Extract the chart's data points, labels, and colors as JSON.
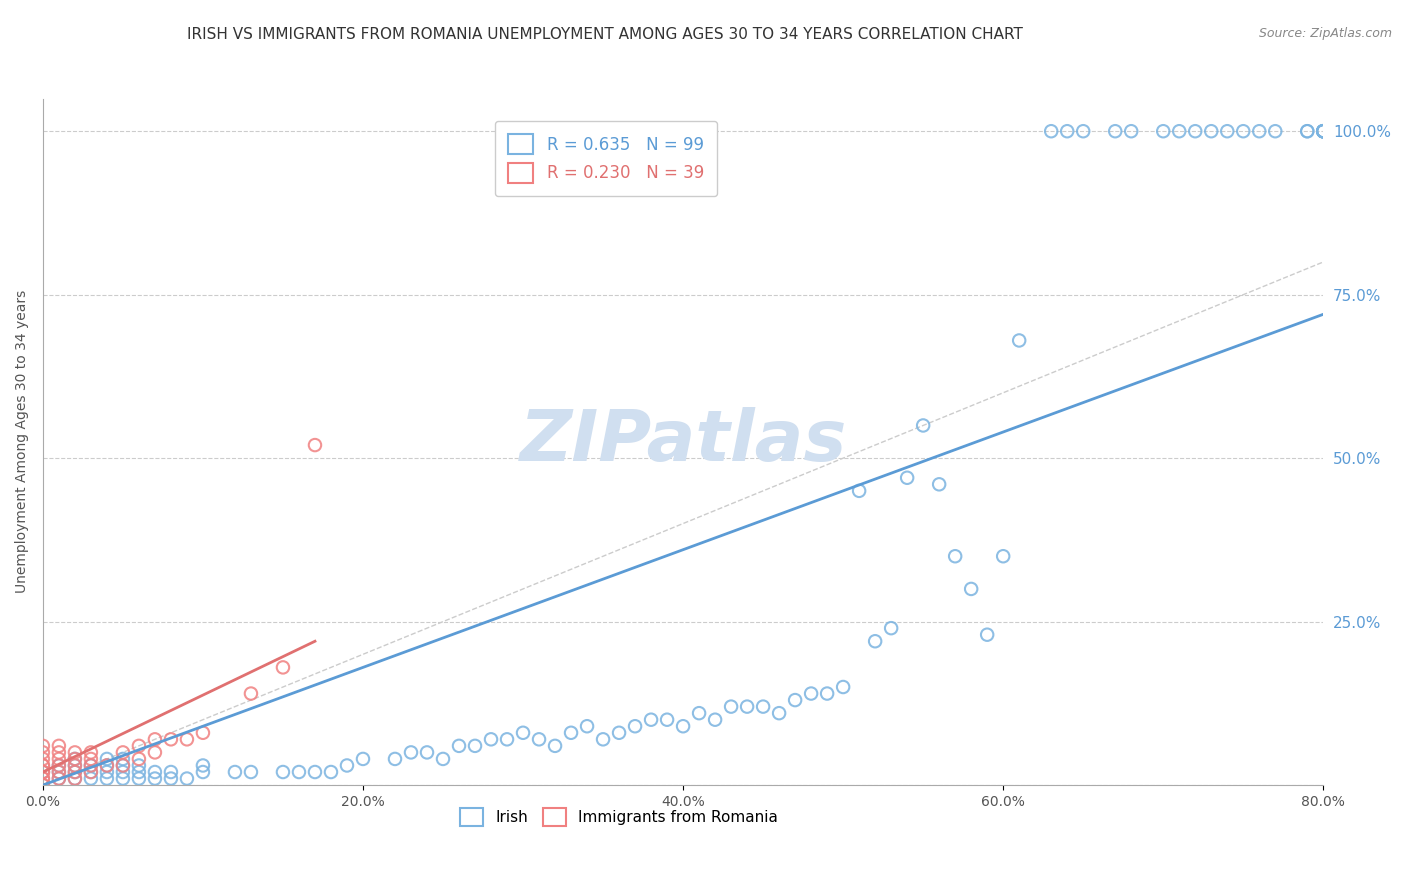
{
  "title": "IRISH VS IMMIGRANTS FROM ROMANIA UNEMPLOYMENT AMONG AGES 30 TO 34 YEARS CORRELATION CHART",
  "source": "Source: ZipAtlas.com",
  "xlabel": "",
  "ylabel": "Unemployment Among Ages 30 to 34 years",
  "xlim": [
    0.0,
    0.8
  ],
  "ylim": [
    0.0,
    1.05
  ],
  "xticks": [
    0.0,
    0.2,
    0.4,
    0.6,
    0.8
  ],
  "xticklabels": [
    "0.0%",
    "20.0%",
    "40.0%",
    "60.0%",
    "80.0%"
  ],
  "yticks_right": [
    0.0,
    0.25,
    0.5,
    0.75,
    1.0
  ],
  "yticklabels_right": [
    "",
    "25.0%",
    "50.0%",
    "75.0%",
    "100.0%"
  ],
  "irish_color": "#7ab3e0",
  "romania_color": "#f08080",
  "irish_R": 0.635,
  "irish_N": 99,
  "romania_R": 0.23,
  "romania_N": 39,
  "background_color": "#ffffff",
  "watermark": "ZIPatlas",
  "watermark_color": "#d0dff0",
  "irish_scatter_x": [
    0.0,
    0.01,
    0.01,
    0.01,
    0.02,
    0.02,
    0.02,
    0.02,
    0.03,
    0.03,
    0.03,
    0.04,
    0.04,
    0.04,
    0.04,
    0.05,
    0.05,
    0.05,
    0.05,
    0.06,
    0.06,
    0.06,
    0.07,
    0.07,
    0.08,
    0.08,
    0.09,
    0.1,
    0.1,
    0.12,
    0.13,
    0.15,
    0.16,
    0.17,
    0.18,
    0.19,
    0.2,
    0.22,
    0.23,
    0.24,
    0.25,
    0.26,
    0.27,
    0.28,
    0.29,
    0.3,
    0.31,
    0.32,
    0.33,
    0.34,
    0.35,
    0.36,
    0.37,
    0.38,
    0.39,
    0.4,
    0.41,
    0.42,
    0.43,
    0.44,
    0.45,
    0.46,
    0.47,
    0.48,
    0.49,
    0.5,
    0.51,
    0.52,
    0.53,
    0.54,
    0.55,
    0.56,
    0.57,
    0.58,
    0.59,
    0.6,
    0.61,
    0.63,
    0.64,
    0.65,
    0.67,
    0.68,
    0.7,
    0.71,
    0.72,
    0.73,
    0.74,
    0.75,
    0.76,
    0.77,
    0.79,
    0.79,
    0.8,
    0.8,
    0.8,
    0.8,
    0.8,
    0.8,
    0.8
  ],
  "irish_scatter_y": [
    0.02,
    0.01,
    0.02,
    0.03,
    0.01,
    0.02,
    0.03,
    0.04,
    0.01,
    0.02,
    0.03,
    0.01,
    0.02,
    0.03,
    0.04,
    0.01,
    0.02,
    0.03,
    0.04,
    0.01,
    0.02,
    0.03,
    0.01,
    0.02,
    0.01,
    0.02,
    0.01,
    0.02,
    0.03,
    0.02,
    0.02,
    0.02,
    0.02,
    0.02,
    0.02,
    0.03,
    0.04,
    0.04,
    0.05,
    0.05,
    0.04,
    0.06,
    0.06,
    0.07,
    0.07,
    0.08,
    0.07,
    0.06,
    0.08,
    0.09,
    0.07,
    0.08,
    0.09,
    0.1,
    0.1,
    0.09,
    0.11,
    0.1,
    0.12,
    0.12,
    0.12,
    0.11,
    0.13,
    0.14,
    0.14,
    0.15,
    0.45,
    0.22,
    0.24,
    0.47,
    0.55,
    0.46,
    0.35,
    0.3,
    0.23,
    0.35,
    0.68,
    1.0,
    1.0,
    1.0,
    1.0,
    1.0,
    1.0,
    1.0,
    1.0,
    1.0,
    1.0,
    1.0,
    1.0,
    1.0,
    1.0,
    1.0,
    1.0,
    1.0,
    1.0,
    1.0,
    1.0,
    1.0,
    1.0
  ],
  "romania_scatter_x": [
    0.0,
    0.0,
    0.0,
    0.0,
    0.0,
    0.0,
    0.0,
    0.0,
    0.0,
    0.0,
    0.0,
    0.01,
    0.01,
    0.01,
    0.01,
    0.01,
    0.01,
    0.02,
    0.02,
    0.02,
    0.02,
    0.02,
    0.03,
    0.03,
    0.03,
    0.03,
    0.04,
    0.05,
    0.05,
    0.06,
    0.06,
    0.07,
    0.07,
    0.08,
    0.09,
    0.1,
    0.13,
    0.15,
    0.17
  ],
  "romania_scatter_y": [
    0.0,
    0.0,
    0.01,
    0.01,
    0.02,
    0.02,
    0.03,
    0.03,
    0.04,
    0.05,
    0.06,
    0.01,
    0.02,
    0.03,
    0.04,
    0.05,
    0.06,
    0.01,
    0.02,
    0.03,
    0.04,
    0.05,
    0.02,
    0.03,
    0.04,
    0.05,
    0.03,
    0.03,
    0.05,
    0.04,
    0.06,
    0.05,
    0.07,
    0.07,
    0.07,
    0.08,
    0.14,
    0.18,
    0.52
  ],
  "irish_trend_x": [
    0.0,
    0.8
  ],
  "irish_trend_y": [
    0.0,
    0.72
  ],
  "romania_trend_x": [
    0.0,
    0.17
  ],
  "romania_trend_y": [
    0.02,
    0.22
  ],
  "ref_line_x": [
    0.0,
    1.0
  ],
  "ref_line_y": [
    0.0,
    1.0
  ],
  "grid_color": "#cccccc",
  "trend_blue": "#5b9bd5",
  "trend_pink": "#e07070",
  "title_fontsize": 11,
  "axis_label_fontsize": 10,
  "tick_fontsize": 10,
  "legend_fontsize": 12
}
